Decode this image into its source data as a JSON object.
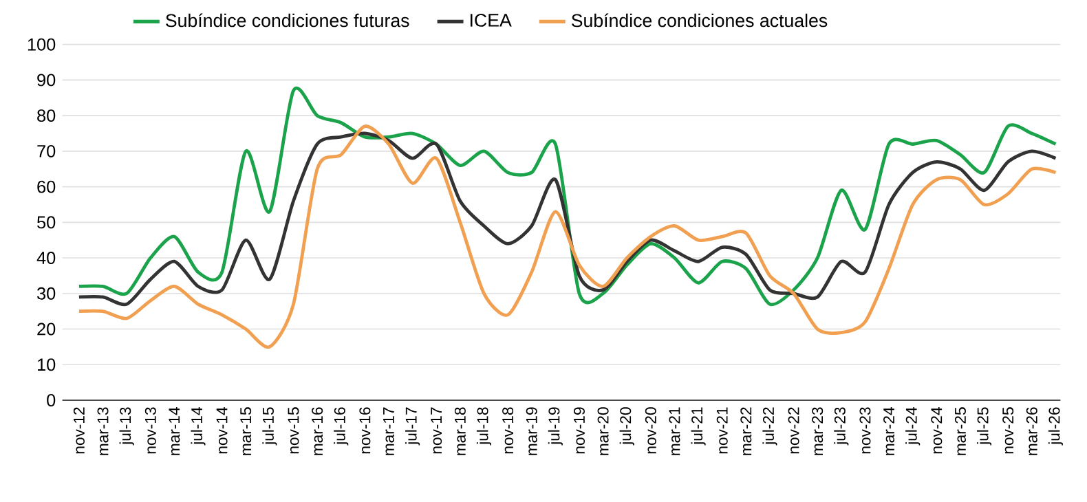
{
  "chart_data": {
    "type": "line",
    "categories": [
      "nov-12",
      "mar-13",
      "jul-13",
      "nov-13",
      "mar-14",
      "jul-14",
      "nov-14",
      "mar-15",
      "jul-15",
      "nov-15",
      "mar-16",
      "jul-16",
      "nov-16",
      "mar-17",
      "jul-17",
      "nov-17",
      "mar-18",
      "jul-18",
      "nov-18",
      "mar-19",
      "jul-19",
      "nov-19",
      "mar-20",
      "jul-20",
      "nov-20",
      "mar-21",
      "jul-21",
      "nov-21",
      "mar-22",
      "jul-22",
      "nov-22",
      "mar-23",
      "jul-23",
      "nov-23",
      "mar-24",
      "jul-24",
      "nov-24",
      "mar-25",
      "jul-25",
      "nov-25",
      "mar-26",
      "jul-26"
    ],
    "series": [
      {
        "name": "Subíndice condiciones futuras",
        "color": "#1aa34a",
        "values": [
          32,
          32,
          30,
          40,
          46,
          36,
          36,
          70,
          53,
          87,
          80,
          78,
          74,
          74,
          75,
          72,
          66,
          70,
          64,
          64,
          72,
          30,
          30,
          38,
          44,
          40,
          33,
          39,
          37,
          27,
          31,
          40,
          59,
          48,
          72,
          72,
          73,
          69,
          64,
          77,
          75,
          72
        ]
      },
      {
        "name": "ICEA",
        "color": "#333333",
        "values": [
          29,
          29,
          27,
          34,
          39,
          32,
          31,
          45,
          34,
          56,
          72,
          74,
          75,
          73,
          68,
          72,
          56,
          49,
          44,
          49,
          62,
          35,
          31,
          39,
          45,
          42,
          39,
          43,
          41,
          31,
          30,
          29,
          39,
          36,
          55,
          64,
          67,
          65,
          59,
          67,
          70,
          68
        ]
      },
      {
        "name": "Subíndice condiciones actuales",
        "color": "#f0a050",
        "values": [
          25,
          25,
          23,
          28,
          32,
          27,
          24,
          20,
          15,
          27,
          65,
          69,
          77,
          72,
          61,
          68,
          50,
          30,
          24,
          36,
          53,
          38,
          32,
          40,
          46,
          49,
          45,
          46,
          47,
          35,
          30,
          20,
          19,
          22,
          37,
          55,
          62,
          62,
          55,
          58,
          65,
          64
        ]
      }
    ],
    "ylim": [
      0,
      100
    ],
    "yticks": [
      0,
      10,
      20,
      30,
      40,
      50,
      60,
      70,
      80,
      90,
      100
    ],
    "grid": "y",
    "legend": "top"
  }
}
